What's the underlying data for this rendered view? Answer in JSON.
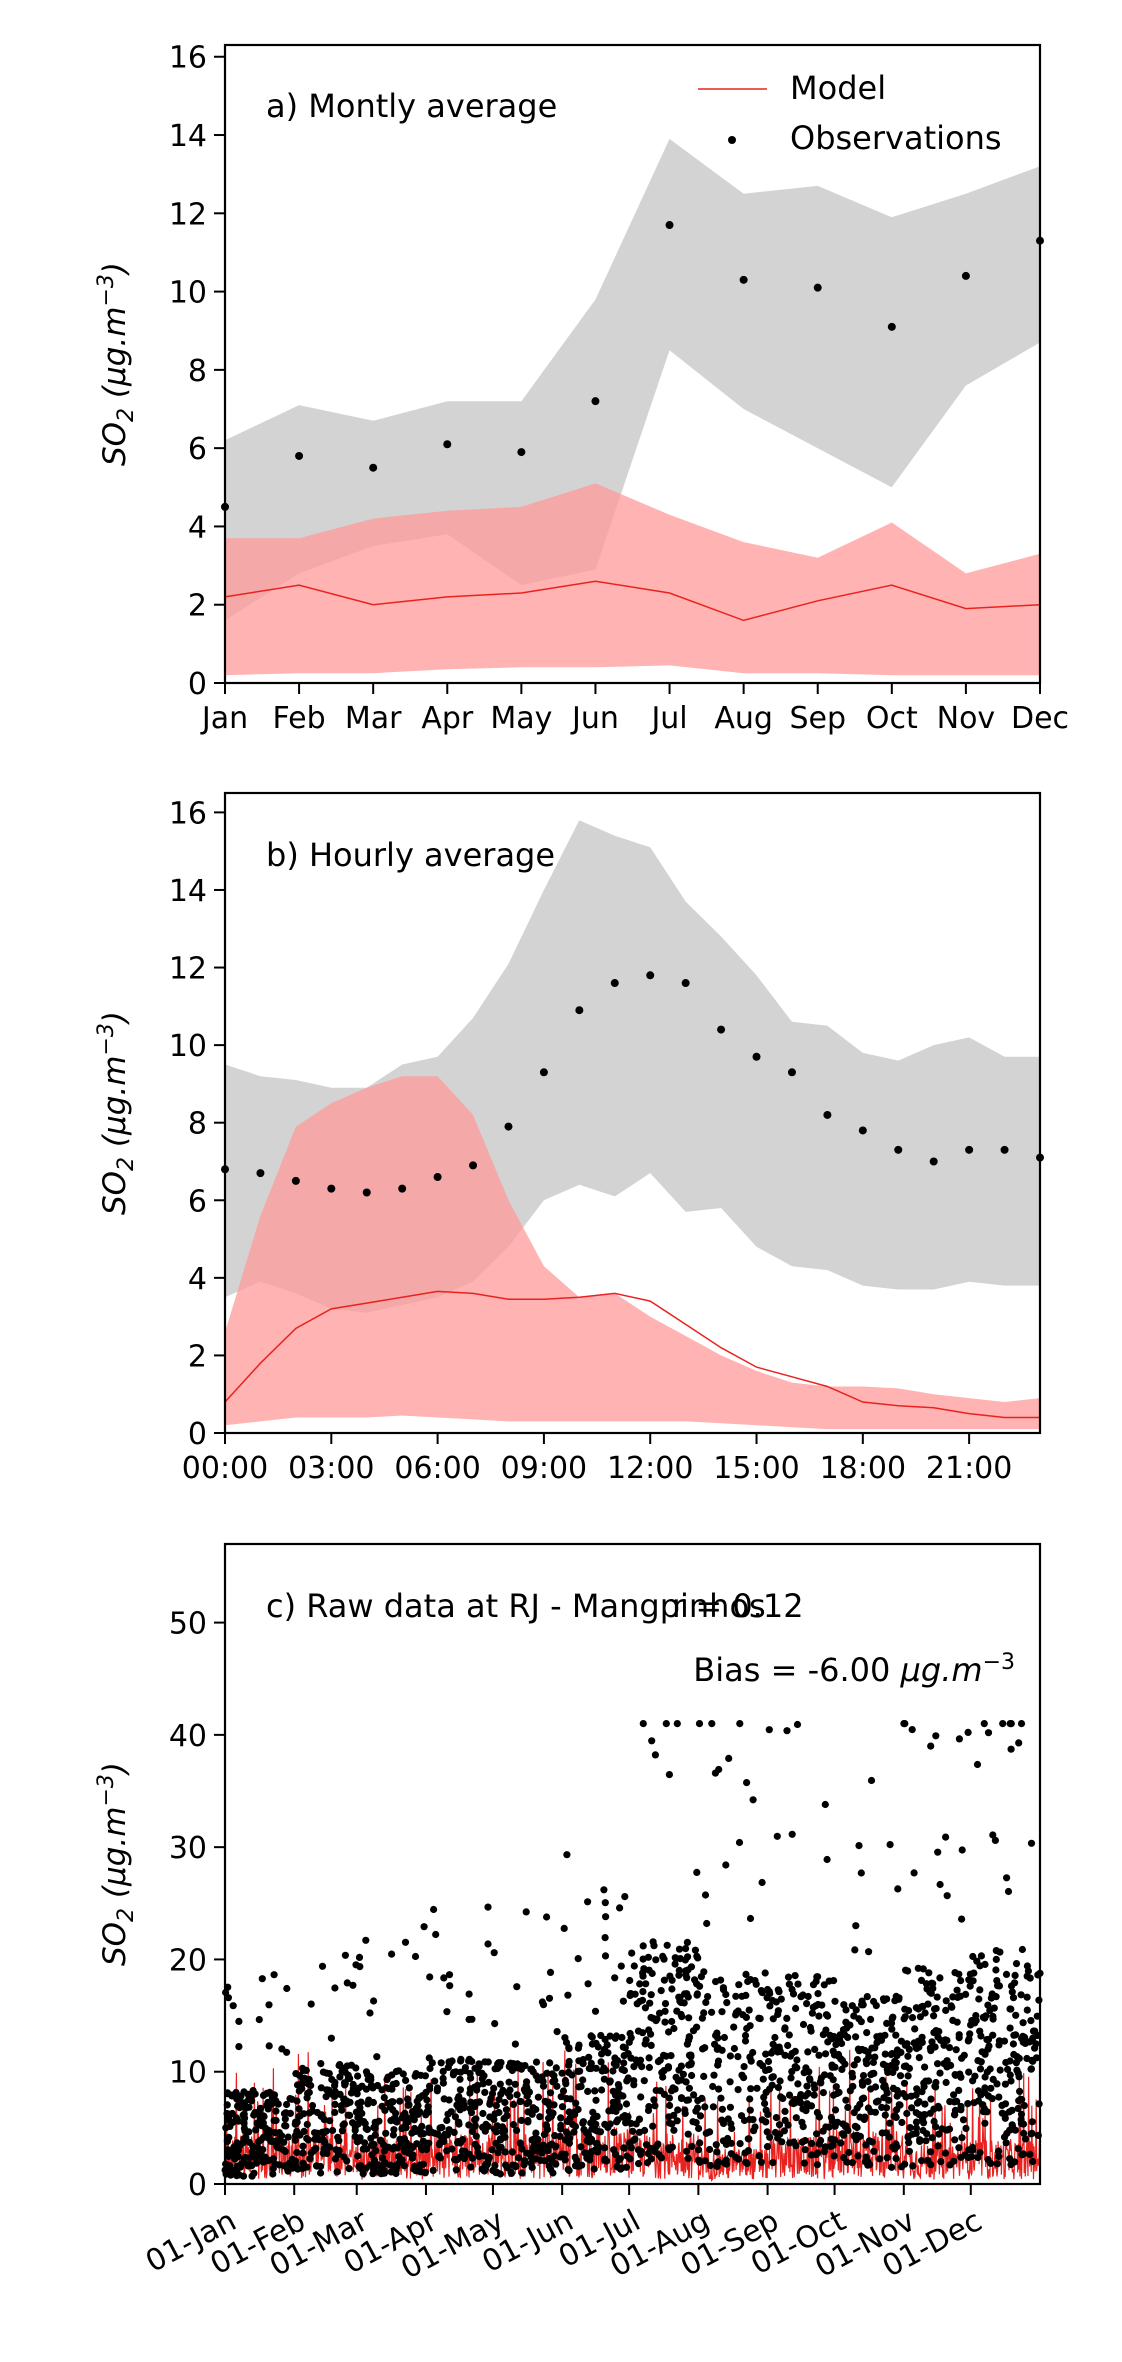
{
  "chart_data": [
    {
      "type": "line",
      "annotation": "a) Montly average",
      "ylabel_main": "SO",
      "ylabel_sub": "2",
      "ylabel_unit": " (μg.m",
      "ylabel_sup": "−3",
      "ylabel_close": ")",
      "categories": [
        "Jan",
        "Feb",
        "Mar",
        "Apr",
        "May",
        "Jun",
        "Jul",
        "Aug",
        "Sep",
        "Oct",
        "Nov",
        "Dec"
      ],
      "ylim": [
        0,
        16.3
      ],
      "yticks": [
        0,
        2,
        4,
        6,
        8,
        10,
        12,
        14,
        16
      ],
      "legend": {
        "placement": "top-right",
        "model": "Model",
        "observations": "Observations"
      },
      "model_line": [
        2.2,
        2.5,
        2.0,
        2.2,
        2.3,
        2.6,
        2.3,
        1.6,
        2.1,
        2.5,
        1.9,
        2.0
      ],
      "model_band_low": [
        0.2,
        0.25,
        0.25,
        0.35,
        0.4,
        0.4,
        0.45,
        0.25,
        0.25,
        0.2,
        0.2,
        0.2
      ],
      "model_band_high": [
        3.7,
        3.7,
        4.2,
        4.4,
        4.5,
        5.1,
        4.3,
        3.6,
        3.2,
        4.1,
        2.8,
        3.3
      ],
      "obs_points": [
        4.5,
        5.8,
        5.5,
        6.1,
        5.9,
        7.2,
        11.7,
        10.3,
        10.1,
        9.1,
        10.4,
        11.3
      ],
      "obs_band_low": [
        1.6,
        2.8,
        3.5,
        3.8,
        2.5,
        2.9,
        8.5,
        7.0,
        6.0,
        5.0,
        7.6,
        8.7
      ],
      "obs_band_high": [
        6.2,
        7.1,
        6.7,
        7.2,
        7.2,
        9.8,
        13.9,
        12.5,
        12.7,
        11.9,
        12.5,
        13.2
      ],
      "colors": {
        "model": "#e8231f",
        "model_band": "#ff9a9a",
        "obs_band": "#c8c8c8",
        "obs": "#000000"
      }
    },
    {
      "type": "line",
      "annotation": "b) Hourly average",
      "ylabel_main": "SO",
      "ylabel_sub": "2",
      "ylabel_unit": " (μg.m",
      "ylabel_sup": "−3",
      "ylabel_close": ")",
      "x": [
        0,
        1,
        2,
        3,
        4,
        5,
        6,
        7,
        8,
        9,
        10,
        11,
        12,
        13,
        14,
        15,
        16,
        17,
        18,
        19,
        20,
        21,
        22,
        23
      ],
      "xtick_labels": [
        "00:00",
        "03:00",
        "06:00",
        "09:00",
        "12:00",
        "15:00",
        "18:00",
        "21:00"
      ],
      "xticks": [
        0,
        3,
        6,
        9,
        12,
        15,
        18,
        21
      ],
      "xlim": [
        0,
        23
      ],
      "ylim": [
        0,
        16.5
      ],
      "yticks": [
        0,
        2,
        4,
        6,
        8,
        10,
        12,
        14,
        16
      ],
      "model_line": [
        0.8,
        1.8,
        2.7,
        3.2,
        3.35,
        3.5,
        3.65,
        3.6,
        3.45,
        3.45,
        3.5,
        3.6,
        3.4,
        2.8,
        2.2,
        1.7,
        1.45,
        1.2,
        0.8,
        0.7,
        0.65,
        0.5,
        0.4,
        0.4
      ],
      "model_band_low": [
        0.2,
        0.3,
        0.4,
        0.4,
        0.4,
        0.45,
        0.4,
        0.35,
        0.3,
        0.3,
        0.3,
        0.3,
        0.3,
        0.3,
        0.25,
        0.2,
        0.15,
        0.1,
        0.1,
        0.1,
        0.1,
        0.1,
        0.1,
        0.1
      ],
      "model_band_high": [
        2.6,
        5.6,
        7.9,
        8.5,
        8.9,
        9.2,
        9.2,
        8.2,
        6.0,
        4.3,
        3.5,
        3.6,
        3.0,
        2.5,
        2.0,
        1.6,
        1.3,
        1.2,
        1.2,
        1.15,
        1.0,
        0.9,
        0.8,
        0.9
      ],
      "obs_points": [
        6.8,
        6.7,
        6.5,
        6.3,
        6.2,
        6.3,
        6.6,
        6.9,
        7.9,
        9.3,
        10.9,
        11.6,
        11.8,
        11.6,
        10.4,
        9.7,
        9.3,
        8.2,
        7.8,
        7.3,
        7.0,
        7.3,
        7.3,
        7.1
      ],
      "obs_band_low": [
        3.5,
        3.9,
        3.6,
        3.2,
        3.1,
        3.3,
        3.5,
        3.9,
        4.8,
        6.0,
        6.4,
        6.1,
        6.7,
        5.7,
        5.8,
        4.8,
        4.3,
        4.2,
        3.8,
        3.7,
        3.7,
        3.9,
        3.8,
        3.8
      ],
      "obs_band_high": [
        9.5,
        9.2,
        9.1,
        8.9,
        8.9,
        9.5,
        9.7,
        10.7,
        12.1,
        14.0,
        15.8,
        15.4,
        15.1,
        13.7,
        12.8,
        11.8,
        10.6,
        10.5,
        9.8,
        9.6,
        10.0,
        10.2,
        9.7,
        9.7
      ],
      "colors": {
        "model": "#e8231f",
        "model_band": "#ff9a9a",
        "obs_band": "#c8c8c8",
        "obs": "#000000"
      }
    },
    {
      "type": "scatter",
      "annotation": "c) Raw data at RJ - Mangpinhos",
      "r_text": "r = 0.12",
      "bias_text": "Bias = -6.00 ",
      "bias_unit": "μg.m",
      "bias_sup": "−3",
      "ylabel_main": "SO",
      "ylabel_sub": "2",
      "ylabel_unit": " (μg.m",
      "ylabel_sup": "−3",
      "ylabel_close": ")",
      "ylim": [
        0,
        57
      ],
      "yticks": [
        0,
        10,
        20,
        30,
        40,
        50
      ],
      "xlim_days": [
        0,
        365
      ],
      "xtick_labels": [
        "01-Jan",
        "01-Feb",
        "01-Mar",
        "01-Apr",
        "01-May",
        "01-Jun",
        "01-Jul",
        "01-Aug",
        "01-Sep",
        "01-Oct",
        "01-Nov",
        "01-Dec"
      ],
      "xticks_days": [
        0,
        31,
        59,
        90,
        120,
        151,
        181,
        212,
        243,
        273,
        304,
        334
      ],
      "monthly_obs_mean": [
        4.5,
        5.8,
        5.5,
        6.1,
        5.9,
        7.2,
        11.7,
        10.3,
        10.1,
        9.1,
        10.4,
        11.3
      ],
      "monthly_model_mean": [
        2.2,
        2.5,
        2.0,
        2.2,
        2.3,
        2.6,
        2.3,
        1.6,
        2.1,
        2.5,
        1.9,
        2.0
      ],
      "colors": {
        "model": "#e8231f",
        "obs": "#000000"
      }
    }
  ]
}
